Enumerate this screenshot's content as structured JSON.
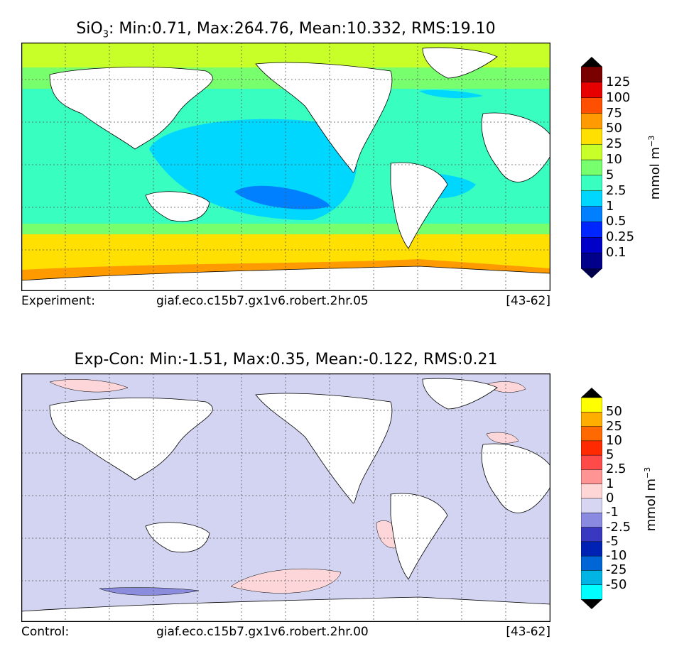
{
  "panel_top": {
    "title_prefix": "SiO",
    "title_sub": "3",
    "title_stats": ": Min:0.71, Max:264.76, Mean:10.332, RMS:19.10",
    "footer_label": "Experiment:",
    "footer_case": "giaf.eco.c15b7.gx1v6.robert.2hr.05",
    "footer_years": "[43-62]",
    "unit_base": "mmol m",
    "unit_exp": "−3",
    "colorbar": {
      "labels": [
        "125",
        "100",
        "75",
        "50",
        "25",
        "10",
        "5",
        "2.5",
        "1",
        "0.5",
        "0.25",
        "0.1"
      ],
      "colors": [
        "#7a0000",
        "#e60000",
        "#ff4f00",
        "#ff9b00",
        "#ffe000",
        "#c8ff28",
        "#78ff6e",
        "#38ffc0",
        "#00d7ff",
        "#0080ff",
        "#0026ff",
        "#0000c8",
        "#00008a"
      ],
      "over_color": "#000000",
      "under_color": "#00004a"
    }
  },
  "panel_bottom": {
    "title": "Exp-Con: Min:-1.51, Max:0.35, Mean:-0.122, RMS:0.21",
    "footer_label": "Control:",
    "footer_case": "giaf.eco.c15b7.gx1v6.robert.2hr.00",
    "footer_years": "[43-62]",
    "unit_base": "mmol m",
    "unit_exp": "−3",
    "colorbar": {
      "labels": [
        "50",
        "25",
        "10",
        "5",
        "2.5",
        "1",
        "0",
        "-1",
        "-2.5",
        "-5",
        "-10",
        "-25",
        "-50"
      ],
      "colors": [
        "#ffff00",
        "#ffae00",
        "#ff6a00",
        "#ff2a00",
        "#ff4a4a",
        "#ff9494",
        "#ffd6d6",
        "#d6d6f2",
        "#8a8ae0",
        "#3838c0",
        "#0022b4",
        "#0066d6",
        "#00b4e6",
        "#00ffff"
      ],
      "over_color": "#000000",
      "under_color": "#000000"
    }
  },
  "field_colors": {
    "land": "#ffffff",
    "diff_background": "#d3d4f2",
    "diff_positive": "#fcd6d8",
    "diff_negative": "#8c8cdc"
  }
}
